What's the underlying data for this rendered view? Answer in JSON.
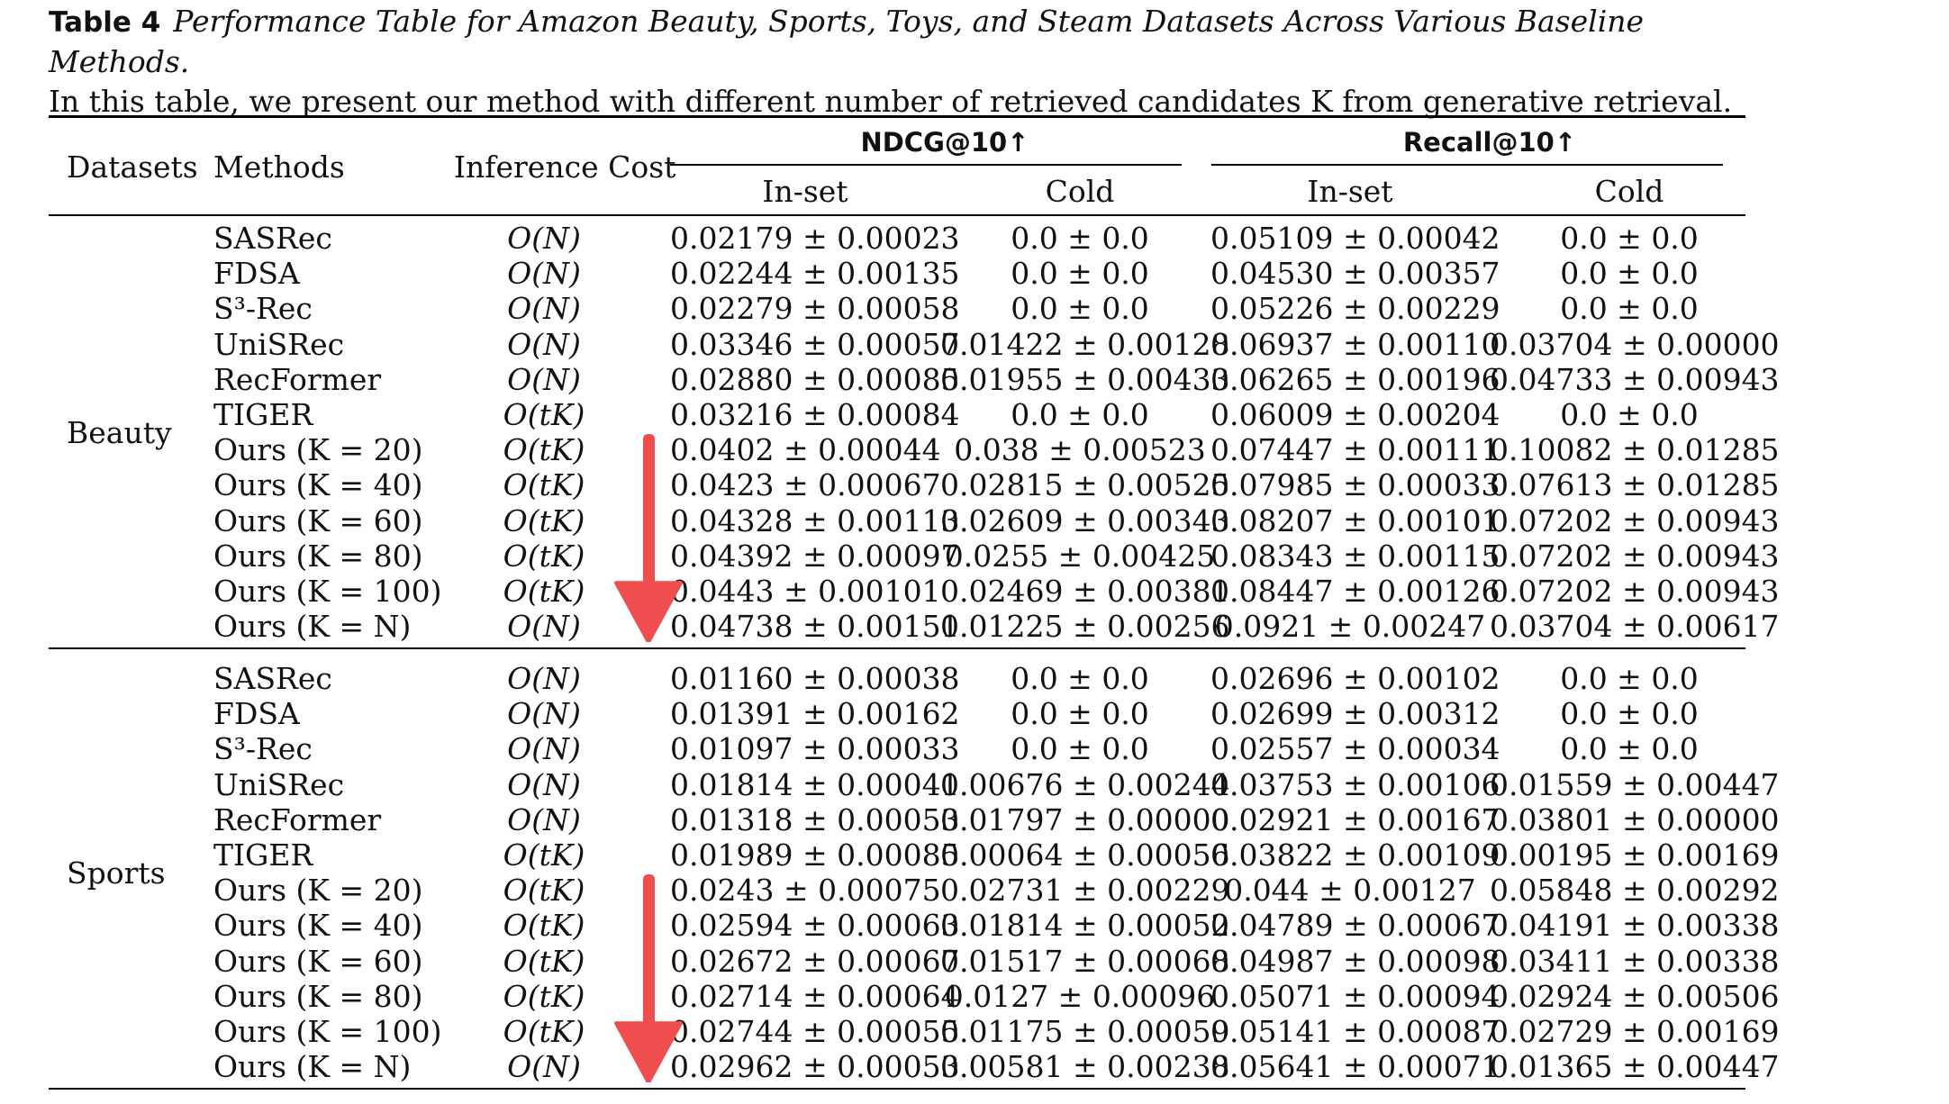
{
  "caption": {
    "label": "Table 4",
    "title": "Performance Table for Amazon Beauty, Sports, Toys, and Steam Datasets Across Various Baseline Methods.",
    "body": "In this table, we present our method with different number of retrieved candidates K from generative retrieval."
  },
  "headers": {
    "datasets": "Datasets",
    "methods": "Methods",
    "cost": "Inference Cost",
    "ndcg": "NDCG@10↑",
    "recall": "Recall@10↑",
    "inset": "In-set",
    "cold": "Cold"
  },
  "colors": {
    "arrow": "#ef4e4e"
  },
  "groups": [
    {
      "name": "Beauty",
      "rows": [
        {
          "method": "SASRec",
          "cost": "O(N)",
          "n_in": "0.02179 ± 0.00023",
          "n_cold": "0.0 ± 0.0",
          "r_in": "0.05109 ± 0.00042",
          "r_cold": "0.0 ± 0.0"
        },
        {
          "method": "FDSA",
          "cost": "O(N)",
          "n_in": "0.02244 ± 0.00135",
          "n_cold": "0.0 ± 0.0",
          "r_in": "0.04530 ± 0.00357",
          "r_cold": "0.0 ± 0.0"
        },
        {
          "method": "S³-Rec",
          "cost": "O(N)",
          "n_in": "0.02279 ± 0.00058",
          "n_cold": "0.0 ± 0.0",
          "r_in": "0.05226 ± 0.00229",
          "r_cold": "0.0 ± 0.0"
        },
        {
          "method": "UniSRec",
          "cost": "O(N)",
          "n_in": "0.03346 ± 0.00057",
          "n_cold": "0.01422 ± 0.00128",
          "r_in": "0.06937 ± 0.00110",
          "r_cold": "0.03704 ± 0.00000"
        },
        {
          "method": "RecFormer",
          "cost": "O(N)",
          "n_in": "0.02880 ± 0.00085",
          "n_cold": "0.01955 ± 0.00433",
          "r_in": "0.06265 ± 0.00196",
          "r_cold": "0.04733 ± 0.00943"
        },
        {
          "method": "TIGER",
          "cost": "O(tK)",
          "n_in": "0.03216 ± 0.00084",
          "n_cold": "0.0 ± 0.0",
          "r_in": "0.06009 ± 0.00204",
          "r_cold": "0.0 ± 0.0"
        },
        {
          "method": "Ours (K = 20)",
          "cost": "O(tK)",
          "n_in": "0.0402 ± 0.00044",
          "n_cold": "0.038 ± 0.00523",
          "r_in": "0.07447 ± 0.00111",
          "r_cold": "0.10082 ± 0.01285"
        },
        {
          "method": "Ours (K = 40)",
          "cost": "O(tK)",
          "n_in": "0.0423 ± 0.00067",
          "n_cold": "0.02815 ± 0.00525",
          "r_in": "0.07985 ± 0.00033",
          "r_cold": "0.07613 ± 0.01285"
        },
        {
          "method": "Ours (K = 60)",
          "cost": "O(tK)",
          "n_in": "0.04328 ± 0.00113",
          "n_cold": "0.02609 ± 0.00343",
          "r_in": "0.08207 ± 0.00101",
          "r_cold": "0.07202 ± 0.00943"
        },
        {
          "method": "Ours (K = 80)",
          "cost": "O(tK)",
          "n_in": "0.04392 ± 0.00097",
          "n_cold": "0.0255 ± 0.00425",
          "r_in": "0.08343 ± 0.00115",
          "r_cold": "0.07202 ± 0.00943"
        },
        {
          "method": "Ours (K = 100)",
          "cost": "O(tK)",
          "n_in": "0.0443 ± 0.00101",
          "n_cold": "0.02469 ± 0.00381",
          "r_in": "0.08447 ± 0.00126",
          "r_cold": "0.07202 ± 0.00943"
        },
        {
          "method": "Ours (K = N)",
          "cost": "O(N)",
          "n_in": "0.04738 ± 0.00151",
          "n_cold": "0.01225 ± 0.00256",
          "r_in": "0.0921 ± 0.00247",
          "r_cold": "0.03704 ± 0.00617"
        }
      ]
    },
    {
      "name": "Sports",
      "rows": [
        {
          "method": "SASRec",
          "cost": "O(N)",
          "n_in": "0.01160 ± 0.00038",
          "n_cold": "0.0 ± 0.0",
          "r_in": "0.02696 ± 0.00102",
          "r_cold": "0.0 ± 0.0"
        },
        {
          "method": "FDSA",
          "cost": "O(N)",
          "n_in": "0.01391 ± 0.00162",
          "n_cold": "0.0 ± 0.0",
          "r_in": "0.02699 ± 0.00312",
          "r_cold": "0.0 ± 0.0"
        },
        {
          "method": "S³-Rec",
          "cost": "O(N)",
          "n_in": "0.01097 ± 0.00033",
          "n_cold": "0.0 ± 0.0",
          "r_in": "0.02557 ± 0.00034",
          "r_cold": "0.0 ± 0.0"
        },
        {
          "method": "UniSRec",
          "cost": "O(N)",
          "n_in": "0.01814 ± 0.00041",
          "n_cold": "0.00676 ± 0.00244",
          "r_in": "0.03753 ± 0.00106",
          "r_cold": "0.01559 ± 0.00447"
        },
        {
          "method": "RecFormer",
          "cost": "O(N)",
          "n_in": "0.01318 ± 0.00053",
          "n_cold": "0.01797 ± 0.00000",
          "r_in": "0.02921 ± 0.00167",
          "r_cold": "0.03801 ± 0.00000"
        },
        {
          "method": "TIGER",
          "cost": "O(tK)",
          "n_in": "0.01989 ± 0.00085",
          "n_cold": "0.00064 ± 0.00056",
          "r_in": "0.03822 ± 0.00109",
          "r_cold": "0.00195 ± 0.00169"
        },
        {
          "method": "Ours (K = 20)",
          "cost": "O(tK)",
          "n_in": "0.0243 ± 0.00075",
          "n_cold": "0.02731 ± 0.00229",
          "r_in": "0.044 ± 0.00127",
          "r_cold": "0.05848 ± 0.00292"
        },
        {
          "method": "Ours (K = 40)",
          "cost": "O(tK)",
          "n_in": "0.02594 ± 0.00063",
          "n_cold": "0.01814 ± 0.00052",
          "r_in": "0.04789 ± 0.00067",
          "r_cold": "0.04191 ± 0.00338"
        },
        {
          "method": "Ours (K = 60)",
          "cost": "O(tK)",
          "n_in": "0.02672 ± 0.00067",
          "n_cold": "0.01517 ± 0.00068",
          "r_in": "0.04987 ± 0.00098",
          "r_cold": "0.03411 ± 0.00338"
        },
        {
          "method": "Ours (K = 80)",
          "cost": "O(tK)",
          "n_in": "0.02714 ± 0.00064",
          "n_cold": "0.0127 ± 0.00096",
          "r_in": "0.05071 ± 0.00094",
          "r_cold": "0.02924 ± 0.00506"
        },
        {
          "method": "Ours (K = 100)",
          "cost": "O(tK)",
          "n_in": "0.02744 ± 0.00055",
          "n_cold": "0.01175 ± 0.00059",
          "r_in": "0.05141 ± 0.00087",
          "r_cold": "0.02729 ± 0.00169"
        },
        {
          "method": "Ours (K = N)",
          "cost": "O(N)",
          "n_in": "0.02962 ± 0.00053",
          "n_cold": "0.00581 ± 0.00238",
          "r_in": "0.05641 ± 0.00071",
          "r_cold": "0.01365 ± 0.00447"
        }
      ]
    }
  ]
}
